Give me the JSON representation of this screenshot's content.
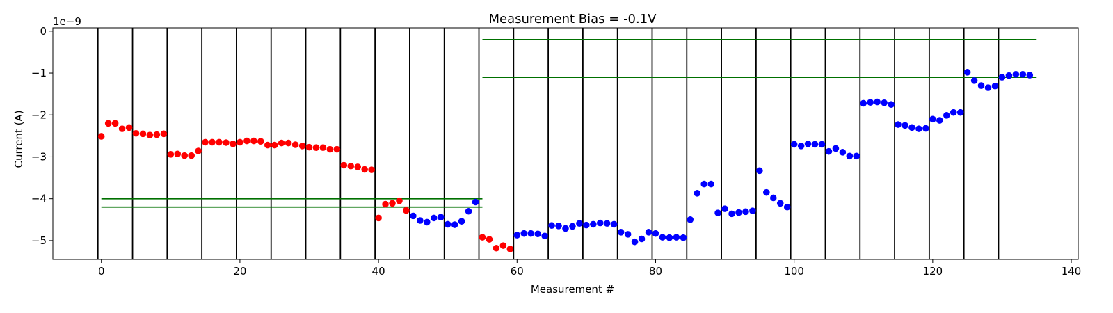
{
  "chart_data": {
    "type": "scatter",
    "title": "Measurement Bias = -0.1V",
    "xlabel": "Measurement #",
    "ylabel": "Current (A)",
    "y_offset_label": "1e−9",
    "xlim": [
      -7,
      141
    ],
    "ylim": [
      -5.45,
      0.08
    ],
    "x_ticks": [
      0,
      20,
      40,
      60,
      80,
      100,
      120,
      140
    ],
    "x_tick_labels": [
      "0",
      "20",
      "40",
      "60",
      "80",
      "100",
      "120",
      "140"
    ],
    "y_ticks": [
      0,
      -1,
      -2,
      -3,
      -4,
      -5
    ],
    "y_tick_labels": [
      "0",
      "−1",
      "−2",
      "−3",
      "−4",
      "−5"
    ],
    "grid": false,
    "colors": {
      "red": "#ff0000",
      "blue": "#0000ff",
      "threshold": "#007000",
      "separator": "#000000"
    },
    "series": [
      {
        "color": "#ff0000",
        "x": [
          0,
          1,
          2,
          3,
          4,
          5,
          6,
          7,
          8,
          9,
          10,
          11,
          12,
          13,
          14,
          15,
          16,
          17,
          18,
          19,
          20,
          21,
          22,
          23,
          24,
          25,
          26,
          27,
          28,
          29,
          30,
          31,
          32,
          33,
          34,
          35,
          36,
          37,
          38,
          39,
          40,
          41,
          42,
          43,
          44,
          55,
          56,
          57,
          58,
          59
        ],
        "y": [
          -2.51,
          -2.2,
          -2.2,
          -2.33,
          -2.3,
          -2.44,
          -2.45,
          -2.48,
          -2.47,
          -2.45,
          -2.94,
          -2.93,
          -2.97,
          -2.97,
          -2.86,
          -2.65,
          -2.65,
          -2.65,
          -2.66,
          -2.69,
          -2.65,
          -2.62,
          -2.62,
          -2.63,
          -2.72,
          -2.72,
          -2.67,
          -2.67,
          -2.71,
          -2.74,
          -2.77,
          -2.78,
          -2.78,
          -2.82,
          -2.82,
          -3.2,
          -3.22,
          -3.24,
          -3.3,
          -3.31,
          -4.46,
          -4.13,
          -4.11,
          -4.05,
          -4.28,
          -4.92,
          -4.97,
          -5.18,
          -5.12,
          -5.2
        ]
      },
      {
        "color": "#0000ff",
        "x": [
          45,
          46,
          47,
          48,
          49,
          50,
          51,
          52,
          53,
          54,
          60,
          61,
          62,
          63,
          64,
          65,
          66,
          67,
          68,
          69,
          70,
          71,
          72,
          73,
          74,
          75,
          76,
          77,
          78,
          79,
          80,
          81,
          82,
          83,
          84,
          85,
          86,
          87,
          88,
          89,
          90,
          91,
          92,
          93,
          94,
          95,
          96,
          97,
          98,
          99,
          100,
          101,
          102,
          103,
          104,
          105,
          106,
          107,
          108,
          109,
          110,
          111,
          112,
          113,
          114,
          115,
          116,
          117,
          118,
          119,
          120,
          121,
          122,
          123,
          124,
          125,
          126,
          127,
          128,
          129,
          130,
          131,
          132,
          133,
          134
        ],
        "y": [
          -4.41,
          -4.52,
          -4.56,
          -4.46,
          -4.44,
          -4.61,
          -4.62,
          -4.54,
          -4.3,
          -4.08,
          -4.87,
          -4.83,
          -4.83,
          -4.84,
          -4.89,
          -4.64,
          -4.65,
          -4.71,
          -4.66,
          -4.59,
          -4.63,
          -4.61,
          -4.58,
          -4.59,
          -4.61,
          -4.8,
          -4.85,
          -5.03,
          -4.96,
          -4.8,
          -4.83,
          -4.92,
          -4.93,
          -4.92,
          -4.93,
          -4.5,
          -3.87,
          -3.65,
          -3.65,
          -4.34,
          -4.24,
          -4.36,
          -4.33,
          -4.31,
          -4.29,
          -3.33,
          -3.85,
          -3.98,
          -4.11,
          -4.2,
          -2.7,
          -2.74,
          -2.69,
          -2.7,
          -2.7,
          -2.87,
          -2.8,
          -2.89,
          -2.98,
          -2.98,
          -1.72,
          -1.7,
          -1.69,
          -1.71,
          -1.75,
          -2.23,
          -2.25,
          -2.3,
          -2.33,
          -2.32,
          -2.1,
          -2.13,
          -2.01,
          -1.94,
          -1.94,
          -0.98,
          -1.18,
          -1.3,
          -1.35,
          -1.31,
          -1.1,
          -1.06,
          -1.03,
          -1.03,
          -1.05
        ]
      }
    ],
    "vertical_lines": [
      -0.5,
      4.5,
      9.5,
      14.5,
      19.5,
      24.5,
      29.5,
      34.5,
      39.5,
      44.5,
      49.5,
      54.5,
      59.5,
      64.5,
      69.5,
      74.5,
      79.5,
      84.5,
      89.5,
      94.5,
      99.5,
      104.5,
      109.5,
      114.5,
      119.5,
      124.5,
      129.5
    ],
    "horizontal_lines": [
      {
        "y": -4.0,
        "x_start": 0,
        "x_end": 55
      },
      {
        "y": -4.2,
        "x_start": 0,
        "x_end": 55
      },
      {
        "y": -0.2,
        "x_start": 55,
        "x_end": 135
      },
      {
        "y": -1.1,
        "x_start": 55,
        "x_end": 135
      }
    ]
  }
}
